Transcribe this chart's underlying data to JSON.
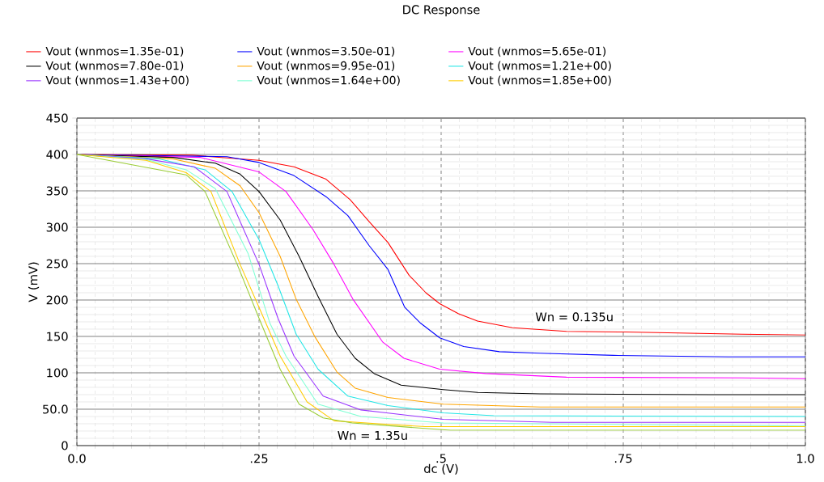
{
  "chart_data": {
    "type": "line",
    "title": "DC Response",
    "xlabel": "dc (V)",
    "ylabel": "V (mV)",
    "xlim": [
      0,
      1
    ],
    "ylim": [
      0,
      450
    ],
    "xticks": [
      {
        "value": 0,
        "label": "0.0"
      },
      {
        "value": 0.25,
        "label": ".25"
      },
      {
        "value": 0.5,
        "label": ".5"
      },
      {
        "value": 0.75,
        "label": ".75"
      },
      {
        "value": 1,
        "label": "1.0"
      }
    ],
    "yticks": [
      0,
      {
        "value": 50,
        "label": "50.0"
      },
      100,
      150,
      200,
      250,
      300,
      350,
      400,
      450
    ],
    "grid": true,
    "legend": "top",
    "annotations": [
      "Wn = 0.135u",
      "Wn = 1.35u"
    ],
    "series": [
      {
        "name": "Vout (wnmos=1.35e-01)",
        "color": "#ff0000",
        "x": [
          0,
          0.158,
          0.25,
          0.298,
          0.342,
          0.375,
          0.401,
          0.427,
          0.456,
          0.479,
          0.498,
          0.524,
          0.55,
          0.598,
          0.672,
          0.753,
          0.913,
          1.0
        ],
        "values": [
          400,
          399,
          392,
          383,
          366,
          338,
          308,
          279,
          234,
          210,
          195,
          181,
          171,
          162,
          157,
          156,
          153,
          152
        ]
      },
      {
        "name": "Vout (wnmos=3.50e-01)",
        "color": "#0000ff",
        "x": [
          0,
          0.206,
          0.25,
          0.298,
          0.342,
          0.372,
          0.401,
          0.427,
          0.45,
          0.472,
          0.498,
          0.531,
          0.58,
          0.636,
          0.736,
          0.894,
          1.0
        ],
        "values": [
          400,
          397,
          389,
          371,
          342,
          316,
          275,
          242,
          190,
          168,
          148,
          136,
          129,
          127,
          124,
          122,
          122
        ]
      },
      {
        "name": "Vout (wnmos=5.65e-01)",
        "color": "#ff00ff",
        "x": [
          0,
          0.169,
          0.25,
          0.287,
          0.324,
          0.353,
          0.379,
          0.42,
          0.449,
          0.498,
          0.561,
          0.672,
          0.913,
          1.0
        ],
        "values": [
          400,
          396,
          376,
          349,
          297,
          249,
          201,
          142,
          120,
          105,
          99,
          94,
          93,
          92
        ]
      },
      {
        "name": "Vout (wnmos=7.80e-01)",
        "color": "#000000",
        "x": [
          0,
          0.132,
          0.19,
          0.224,
          0.25,
          0.279,
          0.305,
          0.331,
          0.357,
          0.382,
          0.408,
          0.445,
          0.503,
          0.55,
          0.636,
          0.87,
          1.0
        ],
        "values": [
          400,
          396,
          388,
          373,
          349,
          310,
          260,
          205,
          153,
          120,
          99,
          83,
          77,
          73,
          71,
          70,
          70
        ]
      },
      {
        "name": "Vout (wnmos=9.95e-01)",
        "color": "#ffa500",
        "x": [
          0,
          0.132,
          0.19,
          0.224,
          0.25,
          0.279,
          0.301,
          0.327,
          0.357,
          0.382,
          0.427,
          0.503,
          0.636,
          1.0
        ],
        "values": [
          400,
          394,
          381,
          357,
          320,
          260,
          201,
          149,
          101,
          79,
          66,
          57,
          53,
          53
        ]
      },
      {
        "name": "Vout (wnmos=1.21e+00)",
        "color": "#22e6e6",
        "x": [
          0,
          0.113,
          0.176,
          0.213,
          0.25,
          0.276,
          0.301,
          0.331,
          0.372,
          0.427,
          0.503,
          0.572,
          1.0
        ],
        "values": [
          400,
          394,
          379,
          349,
          283,
          220,
          153,
          105,
          68,
          55,
          45,
          41,
          40
        ]
      },
      {
        "name": "Vout (wnmos=1.43e+00)",
        "color": "#9933ff",
        "x": [
          0,
          0.095,
          0.161,
          0.206,
          0.25,
          0.276,
          0.298,
          0.338,
          0.39,
          0.503,
          0.653,
          1.0
        ],
        "values": [
          400,
          394,
          383,
          349,
          249,
          175,
          123,
          68,
          49,
          36,
          32,
          32
        ]
      },
      {
        "name": "Vout (wnmos=1.64e+00)",
        "color": "#7fffd4",
        "x": [
          0,
          0.095,
          0.15,
          0.19,
          0.235,
          0.265,
          0.287,
          0.331,
          0.39,
          0.503,
          1.0
        ],
        "values": [
          400,
          393,
          379,
          353,
          264,
          168,
          123,
          57,
          40,
          31,
          27
        ]
      },
      {
        "name": "Vout (wnmos=1.85e+00)",
        "color": "#ffcc00",
        "x": [
          0,
          0.095,
          0.15,
          0.184,
          0.224,
          0.25,
          0.279,
          0.316,
          0.353,
          0.414,
          0.478,
          1.0
        ],
        "values": [
          400,
          392,
          375,
          349,
          249,
          190,
          123,
          60,
          34,
          30,
          26,
          26
        ]
      },
      {
        "color": "#99cc33",
        "x": [
          0,
          0.15,
          0.176,
          0.22,
          0.25,
          0.279,
          0.305,
          0.338,
          0.378,
          0.513,
          1.0
        ],
        "values": [
          400,
          372,
          349,
          249,
          175,
          105,
          57,
          38,
          31,
          21,
          21
        ]
      }
    ]
  }
}
